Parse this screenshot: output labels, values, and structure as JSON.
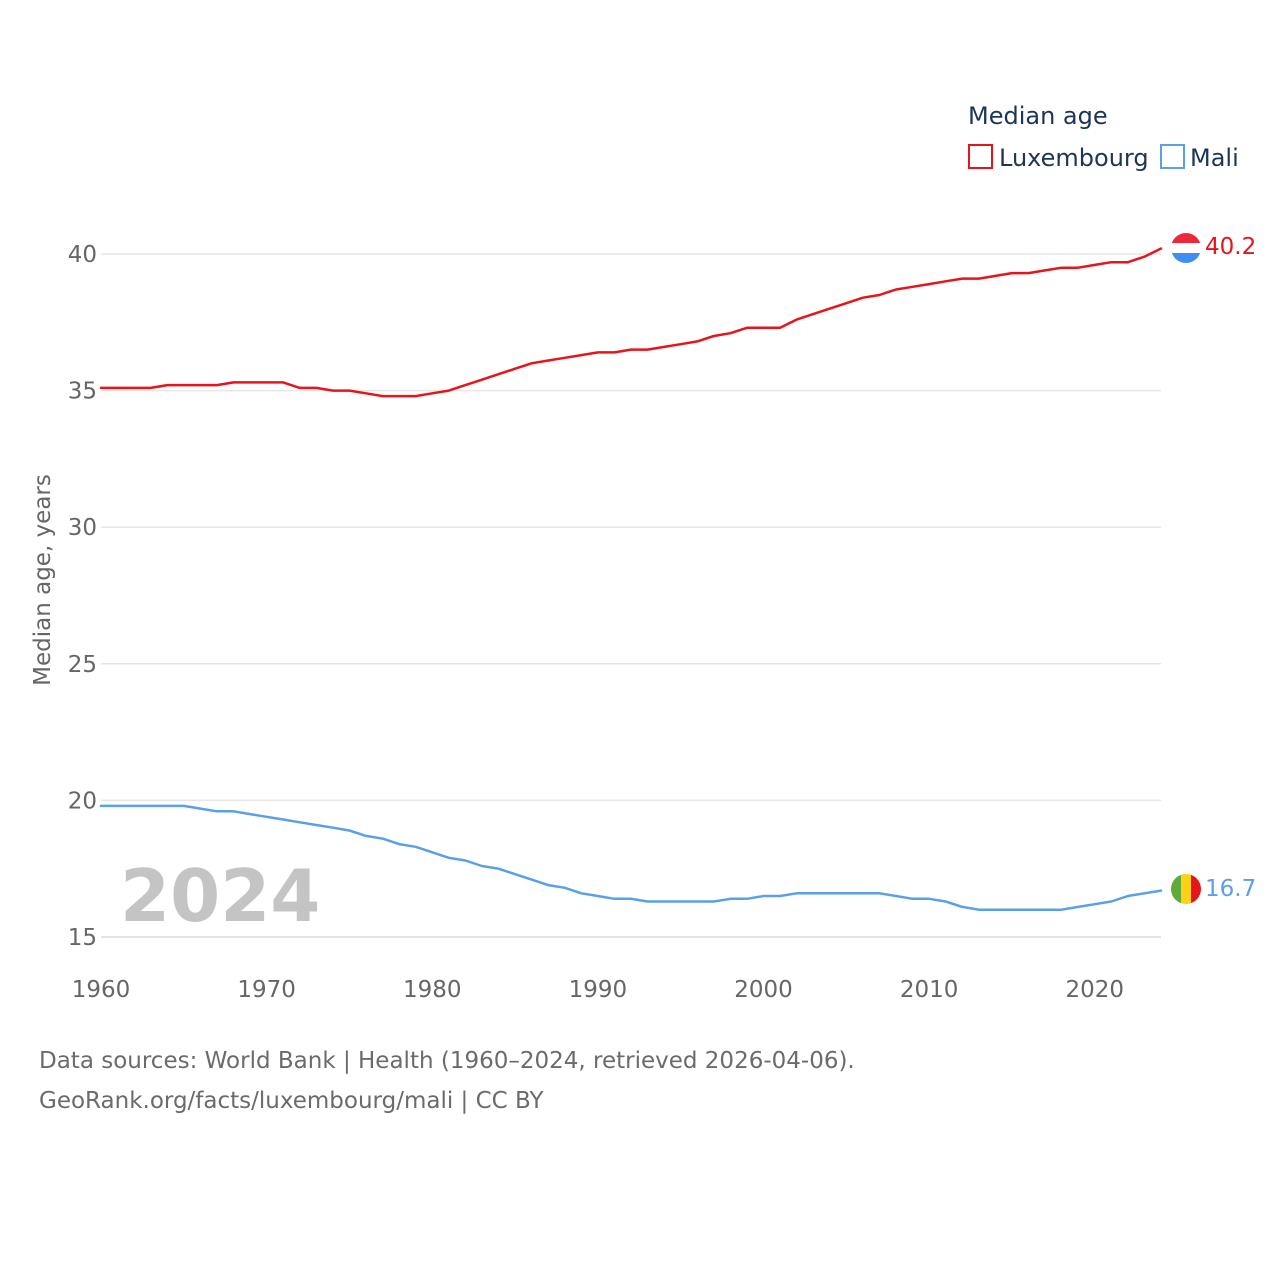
{
  "chart_data": {
    "type": "line",
    "title": "Median age",
    "xlabel": "",
    "ylabel": "Median age, years",
    "xlim": [
      1960,
      2024
    ],
    "ylim": [
      15,
      42
    ],
    "x_ticks": [
      1960,
      1970,
      1980,
      1990,
      2000,
      2010,
      2020
    ],
    "y_ticks": [
      15,
      20,
      25,
      30,
      35,
      40
    ],
    "grid": true,
    "legend_position": "top-right",
    "current_year": "2024",
    "x": [
      1960,
      1961,
      1962,
      1963,
      1964,
      1965,
      1966,
      1967,
      1968,
      1969,
      1970,
      1971,
      1972,
      1973,
      1974,
      1975,
      1976,
      1977,
      1978,
      1979,
      1980,
      1981,
      1982,
      1983,
      1984,
      1985,
      1986,
      1987,
      1988,
      1989,
      1990,
      1991,
      1992,
      1993,
      1994,
      1995,
      1996,
      1997,
      1998,
      1999,
      2000,
      2001,
      2002,
      2003,
      2004,
      2005,
      2006,
      2007,
      2008,
      2009,
      2010,
      2011,
      2012,
      2013,
      2014,
      2015,
      2016,
      2017,
      2018,
      2019,
      2020,
      2021,
      2022,
      2023,
      2024
    ],
    "series": [
      {
        "name": "Luxembourg",
        "color": "#e8141b",
        "end_label": "40.2",
        "flag": "luxembourg-flag",
        "values": [
          35.1,
          35.1,
          35.1,
          35.1,
          35.2,
          35.2,
          35.2,
          35.2,
          35.3,
          35.3,
          35.3,
          35.3,
          35.1,
          35.1,
          35.0,
          35.0,
          34.9,
          34.8,
          34.8,
          34.8,
          34.9,
          35.0,
          35.2,
          35.4,
          35.6,
          35.8,
          36.0,
          36.1,
          36.2,
          36.3,
          36.4,
          36.4,
          36.5,
          36.5,
          36.6,
          36.7,
          36.8,
          37.0,
          37.1,
          37.3,
          37.3,
          37.3,
          37.6,
          37.8,
          38.0,
          38.2,
          38.4,
          38.5,
          38.7,
          38.8,
          38.9,
          39.0,
          39.1,
          39.1,
          39.2,
          39.3,
          39.3,
          39.4,
          39.5,
          39.5,
          39.6,
          39.7,
          39.7,
          39.9,
          40.2
        ]
      },
      {
        "name": "Mali",
        "color": "#5aa0e6",
        "end_label": "16.7",
        "flag": "mali-flag",
        "values": [
          19.8,
          19.8,
          19.8,
          19.8,
          19.8,
          19.8,
          19.7,
          19.6,
          19.6,
          19.5,
          19.4,
          19.3,
          19.2,
          19.1,
          19.0,
          18.9,
          18.7,
          18.6,
          18.4,
          18.3,
          18.1,
          17.9,
          17.8,
          17.6,
          17.5,
          17.3,
          17.1,
          16.9,
          16.8,
          16.6,
          16.5,
          16.4,
          16.4,
          16.3,
          16.3,
          16.3,
          16.3,
          16.3,
          16.4,
          16.4,
          16.5,
          16.5,
          16.6,
          16.6,
          16.6,
          16.6,
          16.6,
          16.6,
          16.5,
          16.4,
          16.4,
          16.3,
          16.1,
          16.0,
          16.0,
          16.0,
          16.0,
          16.0,
          16.0,
          16.1,
          16.2,
          16.3,
          16.5,
          16.6,
          16.7
        ]
      }
    ]
  },
  "legend": {
    "title": "Median age",
    "items": [
      "Luxembourg",
      "Mali"
    ]
  },
  "source": {
    "line1": "Data sources: World Bank | Health (1960–2024, retrieved 2026-04-06).",
    "line2": "GeoRank.org/facts/luxembourg/mali | CC BY"
  }
}
